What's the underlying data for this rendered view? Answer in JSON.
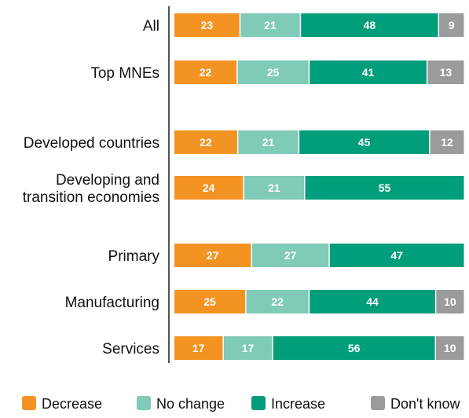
{
  "chart_data": {
    "type": "bar",
    "orientation": "horizontal",
    "stacked": true,
    "title": "",
    "xlabel": "",
    "ylabel": "",
    "xlim": [
      0,
      100
    ],
    "grid": false,
    "legend_position": "bottom",
    "categories": [
      [
        "All"
      ],
      [
        "Top MNEs"
      ],
      [
        "Developed countries"
      ],
      [
        "Developing and",
        "transition economies"
      ],
      [
        "Primary"
      ],
      [
        "Manufacturing"
      ],
      [
        "Services"
      ]
    ],
    "series": [
      {
        "name": "Decrease",
        "color": "#f39322",
        "values": [
          23,
          22,
          22,
          24,
          27,
          25,
          17
        ]
      },
      {
        "name": "No change",
        "color": "#7fcbb7",
        "values": [
          21,
          25,
          21,
          21,
          27,
          22,
          17
        ]
      },
      {
        "name": "Increase",
        "color": "#009e7a",
        "values": [
          48,
          41,
          45,
          55,
          47,
          44,
          56
        ]
      },
      {
        "name": "Don't know",
        "color": "#9b9b9b",
        "values": [
          9,
          13,
          12,
          null,
          null,
          10,
          10
        ]
      }
    ]
  }
}
